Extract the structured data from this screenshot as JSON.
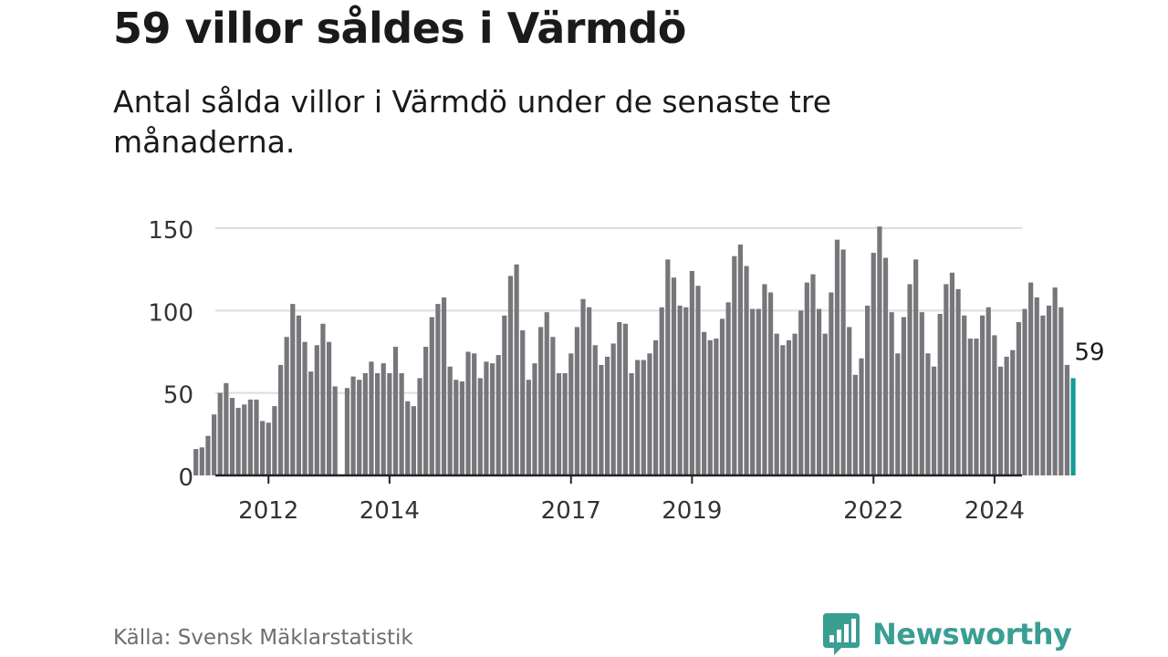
{
  "title": "59 villor såldes i Värmdö",
  "subtitle": "Antal sålda villor i Värmdö under de senaste tre månaderna.",
  "source": "Källa: Svensk Mäklarstatistik",
  "brand": {
    "name": "Newsworthy",
    "icon": "newsworthy-logo-icon",
    "color": "#3a9e93"
  },
  "colors": {
    "bar": "#77767b",
    "highlight": "#139c96",
    "grid": "#dddddd",
    "axis": "#222222"
  },
  "chart_data": {
    "type": "bar",
    "title": "59 villor såldes i Värmdö",
    "xlabel": "",
    "ylabel": "",
    "ylim": [
      0,
      150
    ],
    "yticks": [
      0,
      50,
      100,
      150
    ],
    "grid": true,
    "x_start": "2011-01",
    "x_ticks": [
      {
        "label": "2012",
        "index": 12
      },
      {
        "label": "2014",
        "index": 32
      },
      {
        "label": "2017",
        "index": 62
      },
      {
        "label": "2019",
        "index": 82
      },
      {
        "label": "2022",
        "index": 112
      },
      {
        "label": "2024",
        "index": 132
      }
    ],
    "values": [
      16,
      17,
      24,
      37,
      50,
      56,
      47,
      41,
      43,
      46,
      46,
      33,
      32,
      42,
      67,
      84,
      104,
      97,
      81,
      63,
      79,
      92,
      81,
      54,
      0,
      53,
      60,
      58,
      62,
      69,
      62,
      68,
      62,
      78,
      62,
      45,
      42,
      59,
      78,
      96,
      104,
      108,
      66,
      58,
      57,
      75,
      74,
      59,
      69,
      68,
      73,
      97,
      121,
      128,
      88,
      58,
      68,
      90,
      99,
      84,
      62,
      62,
      74,
      90,
      107,
      102,
      79,
      67,
      72,
      80,
      93,
      92,
      62,
      70,
      70,
      74,
      82,
      102,
      131,
      120,
      103,
      102,
      124,
      115,
      87,
      82,
      83,
      95,
      105,
      133,
      140,
      127,
      101,
      101,
      116,
      111,
      86,
      79,
      82,
      86,
      100,
      117,
      122,
      101,
      86,
      111,
      143,
      137,
      90,
      61,
      71,
      103,
      135,
      151,
      132,
      99,
      74,
      96,
      116,
      131,
      99,
      74,
      66,
      98,
      116,
      123,
      113,
      97,
      83,
      83,
      97,
      102,
      85,
      66,
      72,
      76,
      93,
      101,
      117,
      108,
      97,
      103,
      114,
      102,
      67,
      59
    ],
    "highlight_last": true,
    "last_label": "59"
  }
}
